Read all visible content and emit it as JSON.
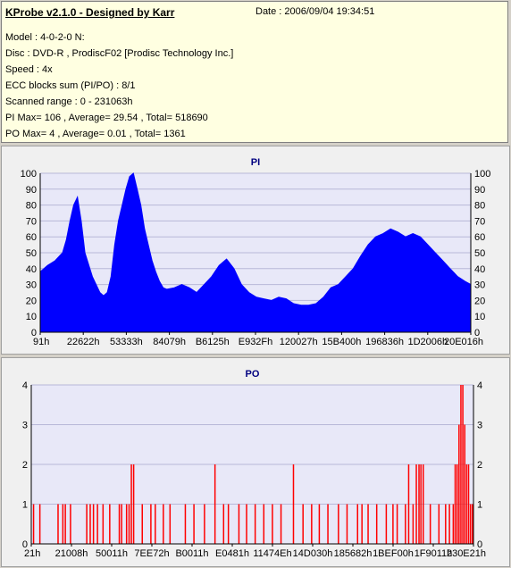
{
  "info": {
    "title": "KProbe v2.1.0 - Designed by Karr",
    "date": "Date : 2006/09/04 19:34:51",
    "lines": [
      "Model : 4-0-2-0 N:",
      "Disc : DVD-R , ProdiscF02 [Prodisc Technology Inc.]",
      "Speed : 4x",
      "ECC blocks sum (PI/PO) : 8/1",
      "Scanned range : 0 - 231063h",
      "PI Max= 106 , Average= 29.54 , Total= 518690",
      "PO Max= 4 , Average= 0.01 , Total= 1361"
    ]
  },
  "colors": {
    "pi": "#0000ff",
    "po": "#ff0000",
    "plot_bg": "#e8e8f8",
    "grid": "#b8b8d8"
  },
  "chart_data": [
    {
      "type": "area",
      "title": "PI",
      "ylim": [
        0,
        100
      ],
      "yticks": [
        0,
        10,
        20,
        30,
        40,
        50,
        60,
        70,
        80,
        90,
        100
      ],
      "xlim": [
        0,
        231063
      ],
      "xtick_labels": [
        "91h",
        "22622h",
        "53333h",
        "84079h",
        "B6125h",
        "E932Fh",
        "120027h",
        "15B400h",
        "196836h",
        "1D2006h",
        "20E016h"
      ],
      "x": [
        0,
        4000,
        8000,
        12000,
        14000,
        16000,
        18000,
        20000,
        22000,
        24000,
        28000,
        32000,
        34000,
        36000,
        38000,
        40000,
        42000,
        44000,
        46000,
        48000,
        50000,
        52000,
        54000,
        56000,
        58000,
        60000,
        62000,
        64000,
        66000,
        68000,
        72000,
        76000,
        80000,
        84000,
        88000,
        92000,
        96000,
        100000,
        104000,
        108000,
        112000,
        116000,
        120000,
        124000,
        128000,
        132000,
        136000,
        140000,
        144000,
        148000,
        152000,
        156000,
        160000,
        164000,
        168000,
        172000,
        176000,
        180000,
        184000,
        188000,
        192000,
        196000,
        200000,
        204000,
        208000,
        212000,
        216000,
        220000,
        224000,
        228000,
        231063
      ],
      "values": [
        38,
        42,
        45,
        50,
        58,
        70,
        80,
        85,
        70,
        50,
        35,
        25,
        23,
        25,
        35,
        55,
        70,
        80,
        90,
        98,
        100,
        90,
        80,
        65,
        55,
        45,
        38,
        32,
        28,
        27,
        28,
        30,
        28,
        25,
        30,
        35,
        42,
        46,
        40,
        30,
        25,
        22,
        21,
        20,
        22,
        21,
        18,
        17,
        17,
        18,
        22,
        28,
        30,
        35,
        40,
        48,
        55,
        60,
        62,
        65,
        63,
        60,
        62,
        60,
        55,
        50,
        45,
        40,
        35,
        32,
        30
      ]
    },
    {
      "type": "bar",
      "title": "PO",
      "ylim": [
        0,
        4
      ],
      "yticks": [
        0,
        1,
        2,
        3,
        4
      ],
      "xlim": [
        0,
        231063
      ],
      "xtick_labels": [
        "21h",
        "21008h",
        "50011h",
        "7EE72h",
        "B0011h",
        "E0481h",
        "11474Eh",
        "14D030h",
        "185682h",
        "1BEF00h",
        "1F9011h",
        "230E21h"
      ],
      "x": [
        1200,
        4500,
        14000,
        16500,
        17800,
        20500,
        29000,
        30800,
        32500,
        34600,
        37500,
        41000,
        46000,
        47200,
        49800,
        51100,
        52300,
        53500,
        58000,
        62500,
        64800,
        69000,
        72500,
        80500,
        85000,
        90500,
        96000,
        100500,
        103000,
        108500,
        112500,
        117000,
        121500,
        126000,
        130500,
        137000,
        142000,
        146500,
        150500,
        155000,
        160500,
        165000,
        170500,
        172800,
        176000,
        180500,
        185500,
        189000,
        191200,
        195500,
        197200,
        199500,
        201200,
        202600,
        203600,
        204800,
        208500,
        213000,
        216500,
        218500,
        220500,
        221500,
        222500,
        223500,
        224500,
        225500,
        226500,
        227500,
        228500,
        229500,
        230500
      ],
      "values": [
        1,
        1,
        1,
        1,
        1,
        1,
        1,
        1,
        1,
        1,
        1,
        1,
        1,
        1,
        1,
        1,
        2,
        2,
        1,
        1,
        1,
        1,
        1,
        1,
        1,
        1,
        2,
        1,
        1,
        1,
        1,
        1,
        1,
        1,
        1,
        2,
        1,
        1,
        1,
        1,
        1,
        1,
        1,
        1,
        1,
        1,
        1,
        1,
        1,
        1,
        2,
        1,
        2,
        2,
        2,
        2,
        1,
        1,
        1,
        1,
        1,
        2,
        2,
        3,
        4,
        4,
        3,
        2,
        2,
        1,
        1
      ]
    }
  ]
}
